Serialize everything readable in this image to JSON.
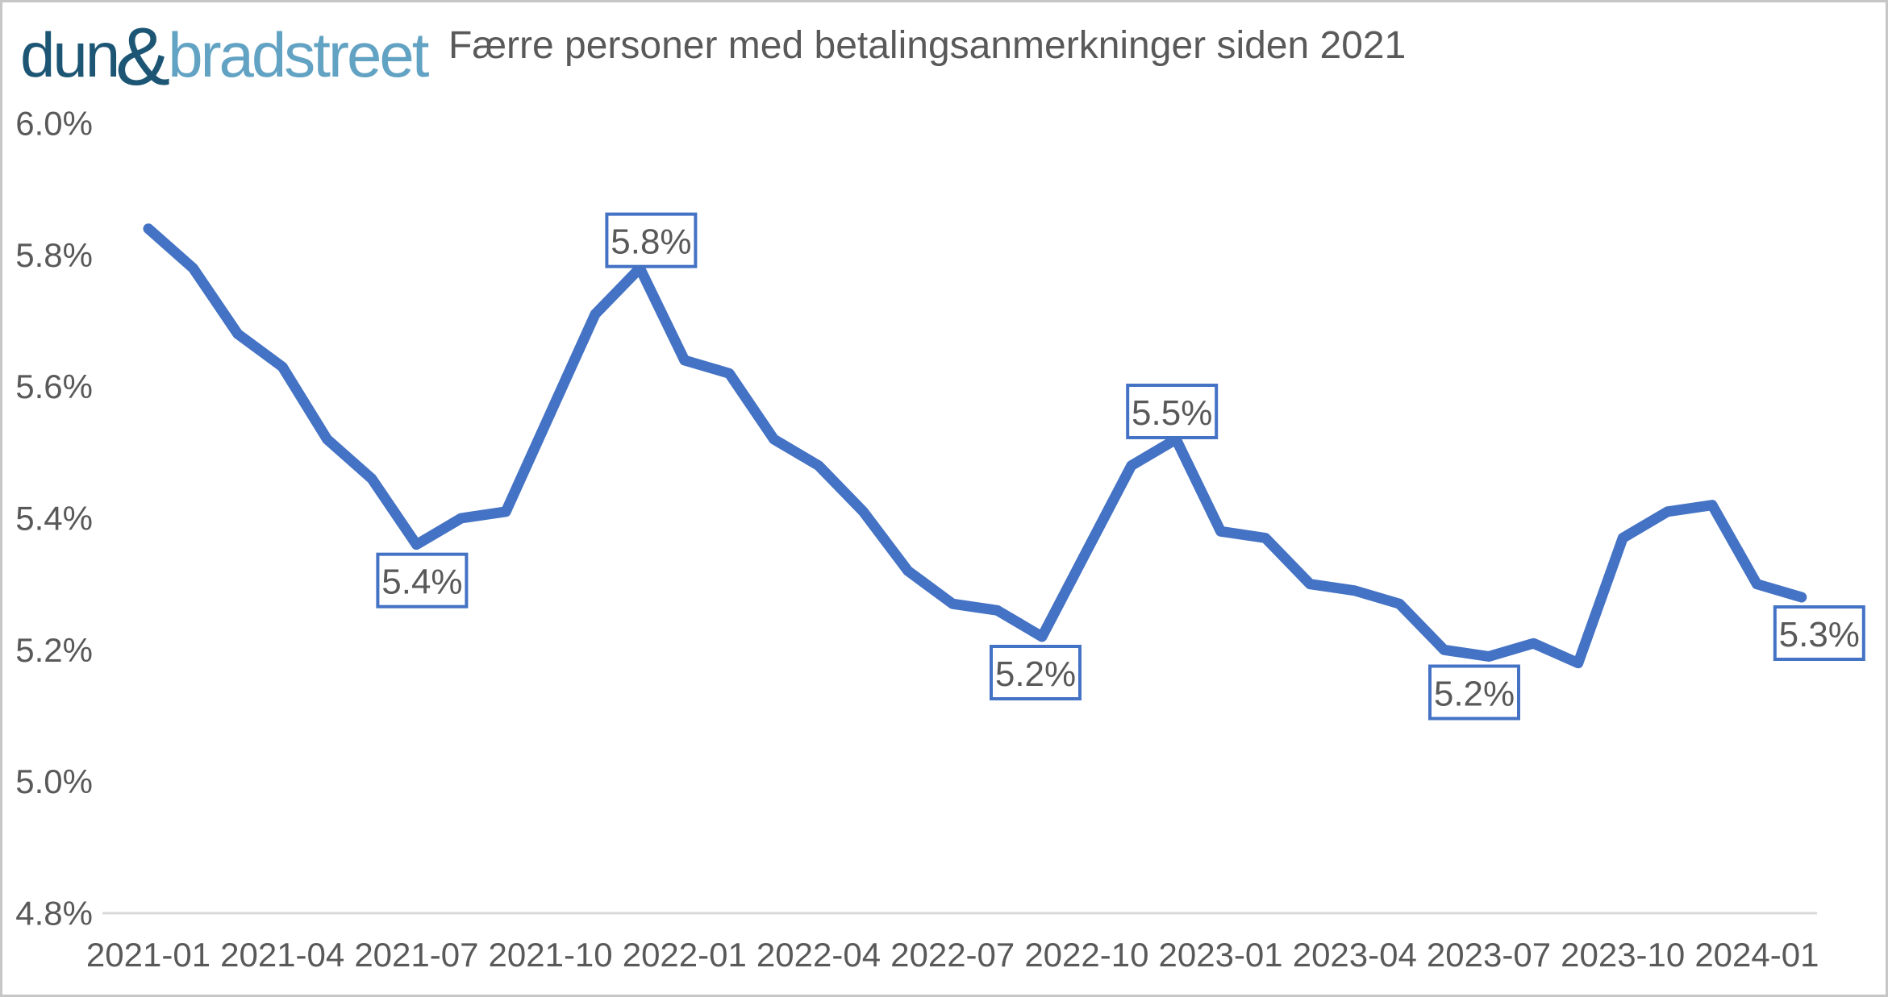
{
  "logo": {
    "dun": "dun",
    "amp": "&",
    "bradstreet": "bradstreet"
  },
  "header": {
    "title": "Færre personer med betalingsanmerkninger siden 2021"
  },
  "colors": {
    "line": "#4472C4",
    "label_box_border": "#4472C4",
    "label_box_fill": "#FFFFFF",
    "text": "#595959",
    "axis_line": "#D9D9D9",
    "logo_dark": "#1d5674",
    "logo_light": "#62a2c3"
  },
  "chart_data": {
    "type": "line",
    "title": "Færre personer med betalingsanmerkninger siden 2021",
    "x": [
      "2021-01",
      "2021-02",
      "2021-03",
      "2021-04",
      "2021-05",
      "2021-06",
      "2021-07",
      "2021-08",
      "2021-09",
      "2021-10",
      "2021-11",
      "2021-12",
      "2022-01",
      "2022-02",
      "2022-03",
      "2022-04",
      "2022-05",
      "2022-06",
      "2022-07",
      "2022-08",
      "2022-09",
      "2022-10",
      "2022-11",
      "2022-12",
      "2023-01",
      "2023-02",
      "2023-03",
      "2023-04",
      "2023-05",
      "2023-06",
      "2023-07",
      "2023-08",
      "2023-09",
      "2023-10",
      "2023-11",
      "2023-12",
      "2024-01",
      "2024-02"
    ],
    "values": [
      5.84,
      5.78,
      5.68,
      5.63,
      5.52,
      5.46,
      5.36,
      5.4,
      5.41,
      5.56,
      5.71,
      5.78,
      5.64,
      5.62,
      5.52,
      5.48,
      5.41,
      5.32,
      5.27,
      5.26,
      5.22,
      5.35,
      5.48,
      5.52,
      5.38,
      5.37,
      5.3,
      5.29,
      5.27,
      5.2,
      5.19,
      5.21,
      5.18,
      5.37,
      5.41,
      5.42,
      5.3,
      5.28
    ],
    "ylim": [
      4.8,
      6.0
    ],
    "ytick_values": [
      6.0,
      5.8,
      5.6,
      5.4,
      5.2,
      5.0,
      4.8
    ],
    "ytick_labels": [
      "6.0%",
      "5.8%",
      "5.6%",
      "5.4%",
      "5.2%",
      "5.0%",
      "4.8%"
    ],
    "xtick_months": [
      "2021-01",
      "2021-04",
      "2021-07",
      "2021-10",
      "2022-01",
      "2022-04",
      "2022-07",
      "2022-10",
      "2023-01",
      "2023-04",
      "2023-07",
      "2023-10",
      "2024-01"
    ],
    "data_labels": [
      {
        "month": "2021-07",
        "label": "5.4%",
        "placement": "below"
      },
      {
        "month": "2021-12",
        "label": "5.8%",
        "placement": "above"
      },
      {
        "month": "2022-09",
        "label": "5.2%",
        "placement": "below"
      },
      {
        "month": "2022-12",
        "label": "5.5%",
        "placement": "above"
      },
      {
        "month": "2023-07",
        "label": "5.2%",
        "placement": "below"
      },
      {
        "month": "2024-02",
        "label": "5.3%",
        "placement": "below"
      }
    ],
    "legend": null,
    "grid": "off"
  }
}
